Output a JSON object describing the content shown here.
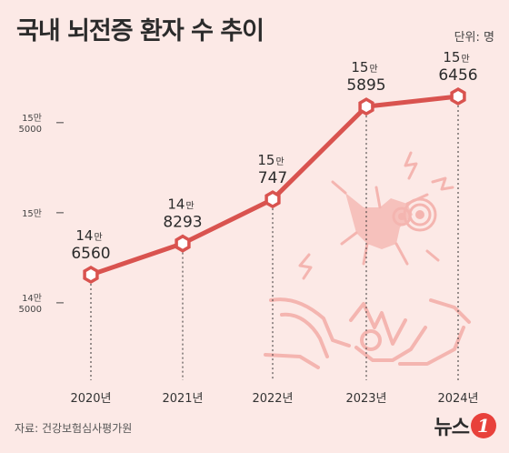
{
  "header": {
    "title": "국내 뇌전증 환자 수 추이",
    "unit": "단위: 명"
  },
  "footer": {
    "source": "자료: 건강보험심사평가원",
    "logo_text": "뉴스",
    "logo_mark": "1"
  },
  "colors": {
    "background": "#fce9e6",
    "line": "#d9534f",
    "marker_fill": "#ffffff",
    "illustration": "#f4b5b0"
  },
  "chart_data": {
    "type": "line",
    "title": "국내 뇌전증 환자 수 추이",
    "unit": "명",
    "categories": [
      "2020년",
      "2021년",
      "2022년",
      "2023년",
      "2024년"
    ],
    "values": [
      146560,
      148293,
      150747,
      155895,
      156456
    ],
    "point_labels": [
      {
        "top": "14",
        "suffix": "만",
        "bottom": "6560"
      },
      {
        "top": "14",
        "suffix": "만",
        "bottom": "8293"
      },
      {
        "top": "15",
        "suffix": "만",
        "bottom": "747"
      },
      {
        "top": "15",
        "suffix": "만",
        "bottom": "5895"
      },
      {
        "top": "15",
        "suffix": "만",
        "bottom": "6456"
      }
    ],
    "y_ticks": [
      {
        "value": 145000,
        "lines": [
          "14만",
          "5000"
        ]
      },
      {
        "value": 150000,
        "lines": [
          "15만"
        ]
      },
      {
        "value": 155000,
        "lines": [
          "15만",
          "5000"
        ]
      }
    ],
    "grid": false,
    "drop_lines": true
  }
}
